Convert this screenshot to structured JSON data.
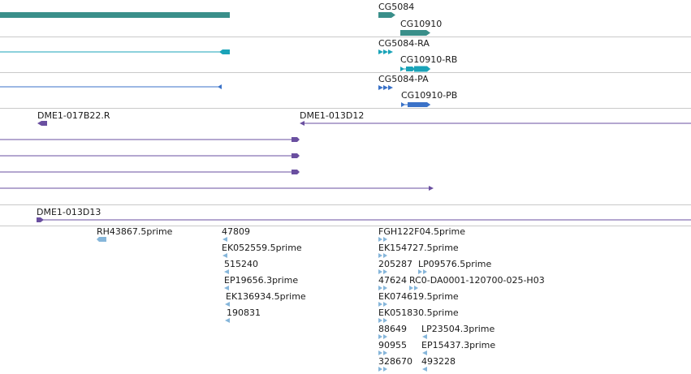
{
  "colors": {
    "gene": "#3a8f8a",
    "mrna": "#1aa3b8",
    "protein": "#3a72c8",
    "clone": "#6a4fa0",
    "est": "#86b6da",
    "divider": "#c9c9c9"
  },
  "tracks": {
    "genes": {
      "labels": [
        "CG5084",
        "CG10910"
      ]
    },
    "transcripts": {
      "labels": [
        "CG5084-RA",
        "CG10910-RB"
      ]
    },
    "proteins": {
      "labels": [
        "CG5084-PA",
        "CG10910-PB"
      ]
    },
    "clones": {
      "labels": [
        "DME1-017B22.R",
        "DME1-013D12",
        "DME1-013D13"
      ]
    },
    "ests": {
      "labels": [
        "RH43867.5prime",
        "47809",
        "EK052559.5prime",
        "515240",
        "EP19656.3prime",
        "EK136934.5prime",
        "190831",
        "FGH122F04.5prime",
        "EK154727.5prime",
        "205287",
        "LP09576.5prime",
        "47624",
        "RC0-DA0001-120700-025-H03",
        "EK074619.5prime",
        "EK051830.5prime",
        "88649",
        "LP23504.3prime",
        "90955",
        "EP15437.3prime",
        "328670",
        "493228"
      ]
    }
  }
}
